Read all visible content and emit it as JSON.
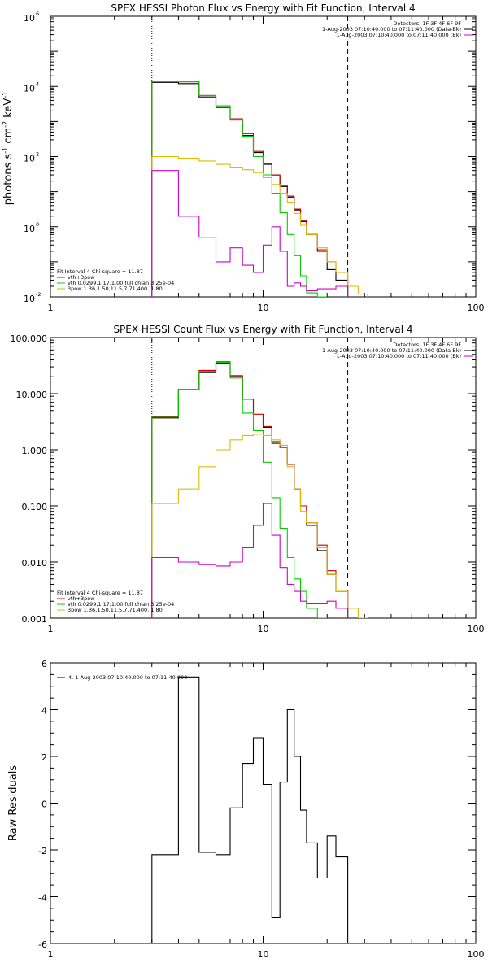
{
  "chart_data": [
    {
      "type": "line",
      "title": "SPEX HESSI Photon Flux vs Energy with Fit Function, Interval 4",
      "ylabel": "photons s$^{-1}$ cm$^{-2}$ keV$^{-1}$",
      "ylabel_parts": [
        "photons s",
        "-1",
        " cm",
        "-2",
        " keV",
        "-1"
      ],
      "xlabel": "",
      "xscale": "log",
      "yscale": "log",
      "xlim": [
        1,
        100
      ],
      "ylim": [
        0.01,
        1000000
      ],
      "xticks": [
        {
          "v": 1,
          "label": "1"
        },
        {
          "v": 10,
          "label": "10"
        },
        {
          "v": 100,
          "label": "100"
        }
      ],
      "yticks": [
        {
          "v": 0.01,
          "base": "10",
          "exp": "-2"
        },
        {
          "v": 1,
          "base": "10",
          "exp": "0"
        },
        {
          "v": 100,
          "base": "10",
          "exp": "2"
        },
        {
          "v": 10000,
          "base": "10",
          "exp": "4"
        },
        {
          "v": 1000000,
          "base": "10",
          "exp": "6"
        }
      ],
      "vlines": [
        {
          "x": 3,
          "style": "dotted"
        },
        {
          "x": 25,
          "style": "dashed"
        }
      ],
      "legend_top_right": [
        {
          "text": "Detectors: 1F 3F 4F 6F 9F",
          "color": null
        },
        {
          "text": "1-Aug-2003 07:10:40.000 to 07:11:40.000 (Data-Bk)",
          "color": "#000000"
        },
        {
          "text": "1-Aug-2003 07:10:40.000 to 07:11:40.000 (Bk)",
          "color": "#cc00cc"
        }
      ],
      "legend_bottom_left": [
        {
          "text": "Fit Interval  4    Chi-square = 11.87",
          "color": null
        },
        {
          "text": "vth+3pow",
          "color": "#cc0000"
        },
        {
          "text": "vth 0.0299,1.17,1.00  full chian 3.25e-04",
          "color": "#00cc00"
        },
        {
          "text": "3pow 1.36,1.50,11.5,7.71,400.,1.80",
          "color": "#ddbb00"
        }
      ],
      "series": [
        {
          "color": "#000000",
          "edges": [
            3,
            4,
            5,
            6,
            7,
            8,
            9,
            10,
            11,
            12,
            13,
            14,
            15,
            16,
            18,
            20,
            22,
            25
          ],
          "values": [
            13000,
            12000,
            5000,
            2500,
            1100,
            400,
            130,
            60,
            28,
            14,
            7,
            3,
            1.4,
            0.6,
            0.2,
            0.06,
            0.03
          ]
        },
        {
          "color": "#cc0000",
          "edges": [
            3,
            4,
            5,
            6,
            7,
            8,
            9,
            10,
            11,
            12,
            13,
            14,
            15,
            16,
            18,
            20,
            22,
            25
          ],
          "values": [
            14000,
            13500,
            5500,
            2800,
            1200,
            450,
            140,
            62,
            30,
            15,
            7.5,
            3.2,
            1.5,
            0.6,
            0.22,
            0.1,
            0.05
          ]
        },
        {
          "color": "#00cc00",
          "edges": [
            3,
            4,
            5,
            6,
            7,
            8,
            9,
            10,
            11,
            12,
            13,
            14,
            15,
            16,
            18,
            20
          ],
          "values": [
            14000,
            13500,
            5500,
            2800,
            1150,
            380,
            100,
            30,
            9,
            2.5,
            0.6,
            0.15,
            0.04,
            0.013,
            0.008
          ]
        },
        {
          "color": "#ddbb00",
          "edges": [
            3,
            4,
            5,
            6,
            7,
            8,
            9,
            10,
            11,
            12,
            13,
            14,
            15,
            16,
            18,
            20,
            22,
            25,
            28,
            31
          ],
          "values": [
            100,
            90,
            75,
            60,
            50,
            42,
            35,
            25,
            16,
            9,
            5,
            2.4,
            1.1,
            0.6,
            0.25,
            0.1,
            0.05,
            0.02,
            0.012
          ]
        },
        {
          "color": "#cc00cc",
          "edges": [
            3,
            4,
            5,
            6,
            7,
            8,
            9,
            10,
            11,
            12,
            13,
            14,
            15,
            16,
            18,
            20,
            22,
            25
          ],
          "values": [
            40,
            2,
            0.5,
            0.1,
            0.25,
            0.08,
            0.05,
            0.3,
            1.0,
            0.2,
            0.02,
            0.025,
            0.02,
            0.015,
            0.017,
            0.017,
            0.02
          ]
        }
      ]
    },
    {
      "type": "line",
      "title": "SPEX HESSI Count Flux vs Energy with Fit Function, Interval 4",
      "xlabel": "",
      "ylabel": "",
      "xscale": "log",
      "yscale": "log",
      "xlim": [
        1,
        100
      ],
      "ylim": [
        0.001,
        100
      ],
      "xticks": [
        {
          "v": 1,
          "label": "1"
        },
        {
          "v": 10,
          "label": "10"
        },
        {
          "v": 100,
          "label": "100"
        }
      ],
      "yticks": [
        {
          "v": 0.001,
          "label": "0.001"
        },
        {
          "v": 0.01,
          "label": "0.010"
        },
        {
          "v": 0.1,
          "label": "0.100"
        },
        {
          "v": 1,
          "label": "1.000"
        },
        {
          "v": 10,
          "label": "10.000"
        },
        {
          "v": 100,
          "label": "100.000"
        }
      ],
      "vlines": [
        {
          "x": 3,
          "style": "dotted"
        },
        {
          "x": 25,
          "style": "dashed"
        }
      ],
      "legend_top_right": [
        {
          "text": "Detectors: 1F 3F 4F 6F 9F",
          "color": null
        },
        {
          "text": "1-Aug-2003 07:10:40.000 to 07:11:40.000 (Data-Bk)",
          "color": "#000000"
        },
        {
          "text": "1-Aug-2003 07:10:40.000 to 07:11:40.000 (Bk)",
          "color": "#cc00cc"
        }
      ],
      "legend_bottom_left": [
        {
          "text": "Fit Interval  4    Chi-square = 11.87",
          "color": null
        },
        {
          "text": "vth+3pow",
          "color": "#cc0000"
        },
        {
          "text": "vth 0.0299,1.17,1.00  full chian 3.25e-04",
          "color": "#00cc00"
        },
        {
          "text": "3pow 1.36,1.50,11.5,7.71,400.,1.80",
          "color": "#ddbb00"
        }
      ],
      "series": [
        {
          "color": "#000000",
          "edges": [
            3,
            4,
            5,
            6,
            7,
            8,
            9,
            10,
            11,
            12,
            13,
            14,
            15,
            16,
            18,
            20,
            22,
            25
          ],
          "values": [
            3.7,
            12,
            24,
            35,
            20,
            8,
            4,
            2.5,
            1.3,
            1.1,
            0.55,
            0.2,
            0.1,
            0.045,
            0.016,
            0.006,
            0.003
          ]
        },
        {
          "color": "#cc0000",
          "edges": [
            3,
            4,
            5,
            6,
            7,
            8,
            9,
            10,
            11,
            12,
            13,
            14,
            15,
            16,
            18,
            20,
            22,
            25
          ],
          "values": [
            3.9,
            12,
            26,
            37,
            21,
            8,
            4.3,
            2.6,
            1.4,
            1.1,
            0.55,
            0.2,
            0.1,
            0.05,
            0.02,
            0.007,
            0.003
          ]
        },
        {
          "color": "#00cc00",
          "edges": [
            3,
            4,
            5,
            6,
            7,
            8,
            9,
            10,
            11,
            12,
            13,
            14,
            15,
            16,
            18,
            20
          ],
          "values": [
            3.8,
            12,
            25,
            36,
            19,
            4.5,
            2.2,
            0.6,
            0.14,
            0.04,
            0.012,
            0.005,
            0.003,
            0.0015,
            0.001
          ]
        },
        {
          "color": "#ddbb00",
          "edges": [
            3,
            4,
            5,
            6,
            7,
            8,
            9,
            10,
            11,
            12,
            13,
            14,
            15,
            16,
            18,
            20,
            22,
            25,
            28,
            31
          ],
          "values": [
            0.11,
            0.2,
            0.5,
            1.0,
            1.5,
            1.8,
            1.9,
            1.8,
            1.5,
            1.2,
            0.5,
            0.2,
            0.08,
            0.05,
            0.018,
            0.006,
            0.003,
            0.0015,
            0.001
          ]
        },
        {
          "color": "#cc00cc",
          "edges": [
            3,
            4,
            5,
            6,
            7,
            8,
            9,
            10,
            11,
            12,
            13,
            14,
            15,
            16,
            18,
            20,
            22,
            25
          ],
          "values": [
            0.012,
            0.01,
            0.009,
            0.0085,
            0.01,
            0.018,
            0.045,
            0.11,
            0.03,
            0.008,
            0.004,
            0.003,
            0.002,
            0.0018,
            0.0018,
            0.002,
            0.0015
          ]
        }
      ]
    },
    {
      "type": "line",
      "title": "",
      "xlabel": "",
      "ylabel": "Raw Residuals",
      "xscale": "log",
      "yscale": "linear",
      "xlim": [
        1,
        100
      ],
      "ylim": [
        -6,
        6
      ],
      "xticks": [
        {
          "v": 1,
          "label": "1"
        },
        {
          "v": 10,
          "label": "10"
        },
        {
          "v": 100,
          "label": "100"
        }
      ],
      "yticks": [
        {
          "v": -6,
          "label": "-6"
        },
        {
          "v": -4,
          "label": "-4"
        },
        {
          "v": -2,
          "label": "-2"
        },
        {
          "v": 0,
          "label": "0"
        },
        {
          "v": 2,
          "label": "2"
        },
        {
          "v": 4,
          "label": "4"
        },
        {
          "v": 6,
          "label": "6"
        }
      ],
      "legend_top_left": [
        {
          "text": "4.  1-Aug-2003 07:10:40.000 to 07:11:40.000",
          "color": "#000000"
        }
      ],
      "series": [
        {
          "color": "#000000",
          "edges": [
            3,
            4,
            5,
            6,
            7,
            8,
            9,
            10,
            11,
            12,
            13,
            14,
            15,
            16,
            18,
            20,
            22,
            25
          ],
          "values": [
            -2.2,
            5.4,
            -2.1,
            -2.2,
            -0.2,
            1.7,
            2.8,
            0.8,
            -4.9,
            0.9,
            4.0,
            2.0,
            -0.3,
            -1.7,
            -3.2,
            -1.4,
            -2.3
          ],
          "drop_to_bottom_first": true
        }
      ]
    }
  ]
}
